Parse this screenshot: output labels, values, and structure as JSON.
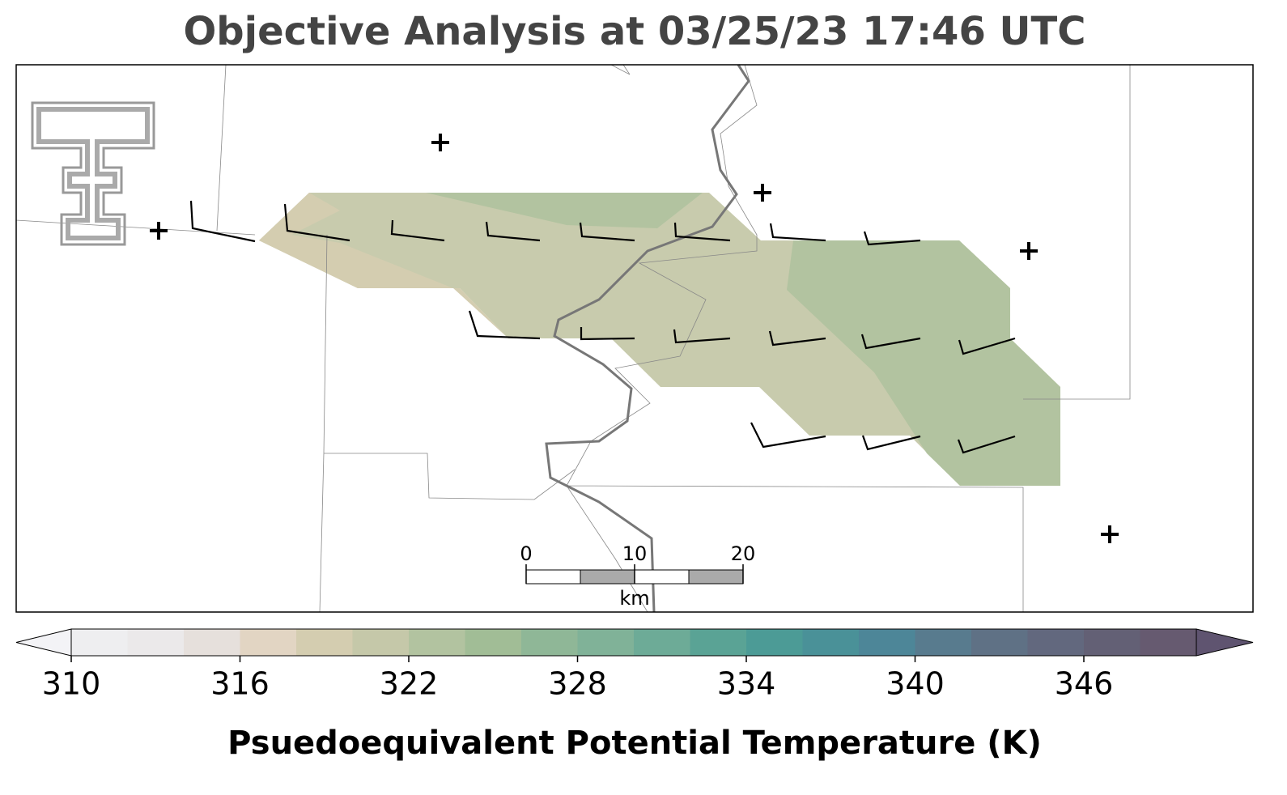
{
  "title": "Objective Analysis at 03/25/23 17:46 UTC",
  "scalebar": {
    "ticks": [
      0,
      10,
      20
    ],
    "unit": "km"
  },
  "colorbar": {
    "label": "Psuedoequivalent Potential Temperature (K)",
    "levels": [
      310,
      312,
      314,
      316,
      318,
      320,
      322,
      324,
      326,
      328,
      330,
      332,
      334,
      336,
      338,
      340,
      342,
      344,
      346,
      348,
      350
    ],
    "ticks": [
      310,
      316,
      322,
      328,
      334,
      340,
      346
    ],
    "colors": [
      "#eeeef0",
      "#ebe9ea",
      "#e6e0dc",
      "#e2d5c3",
      "#d4cdb0",
      "#c5c8a9",
      "#b2c3a0",
      "#a1bd96",
      "#8fb797",
      "#80b298",
      "#6dab97",
      "#5aa395",
      "#4c9b96",
      "#4a9198",
      "#4d8698",
      "#587b8e",
      "#5f7185",
      "#62687e",
      "#636075",
      "#665a70"
    ],
    "under_color": "#f3f3f6",
    "over_color": "#5f5470"
  }
}
